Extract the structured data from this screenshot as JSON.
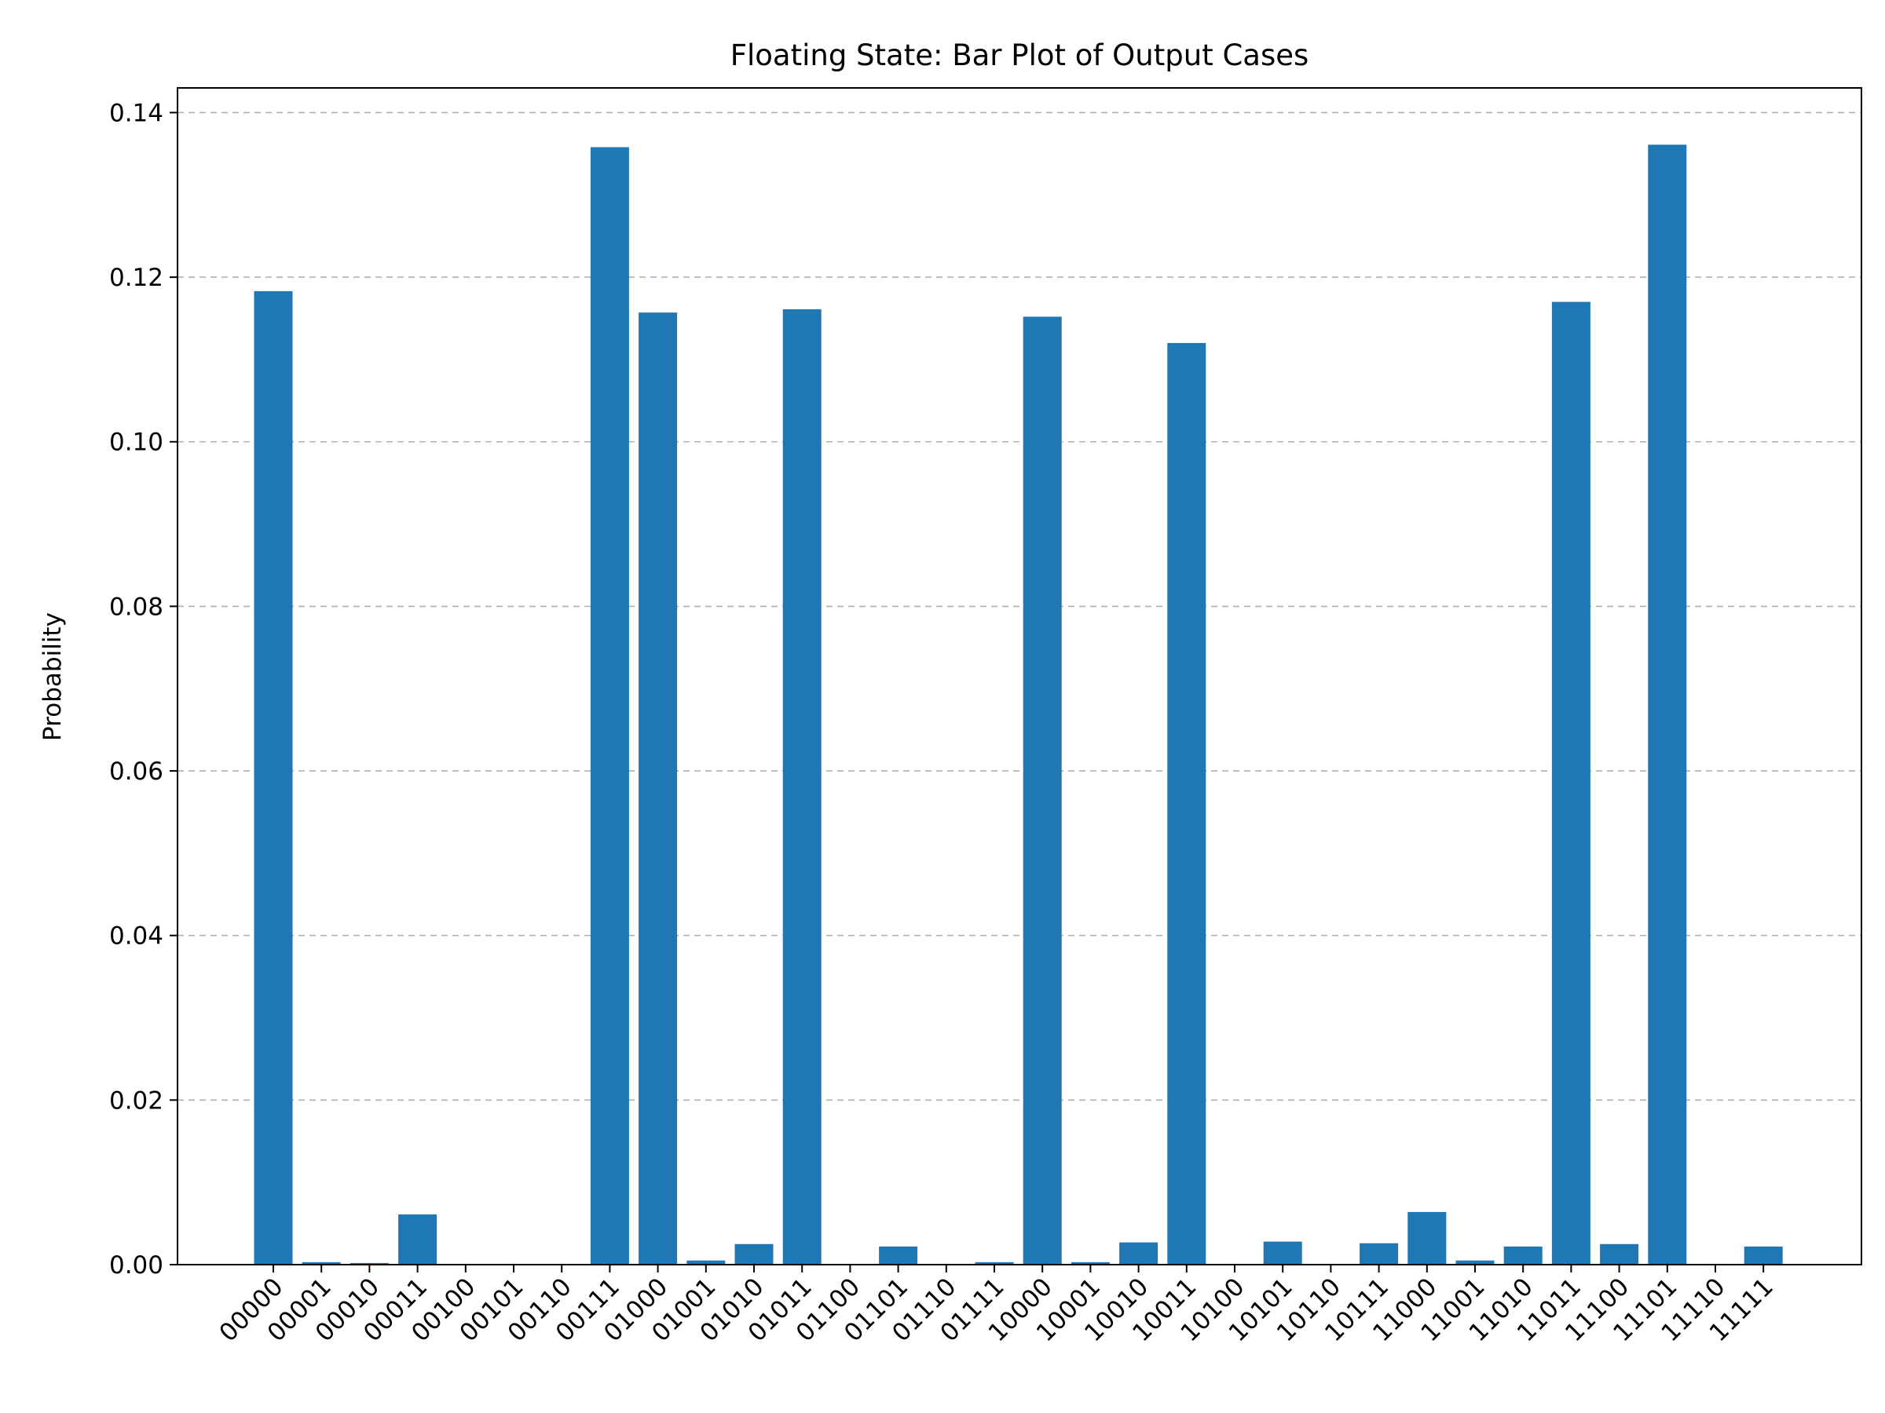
{
  "chart_data": {
    "type": "bar",
    "title": "Floating State: Bar Plot of Output Cases",
    "xlabel": "",
    "ylabel": "Probability",
    "ylim": [
      0,
      0.143
    ],
    "yticks": [
      0.0,
      0.02,
      0.04,
      0.06,
      0.08,
      0.1,
      0.12,
      0.14
    ],
    "ytick_labels": [
      "0.00",
      "0.02",
      "0.04",
      "0.06",
      "0.08",
      "0.10",
      "0.12",
      "0.14"
    ],
    "grid": "y-dashed",
    "color": "#1f77b4",
    "categories": [
      "00000",
      "00001",
      "00010",
      "00011",
      "00100",
      "00101",
      "00110",
      "00111",
      "01000",
      "01001",
      "01010",
      "01011",
      "01100",
      "01101",
      "01110",
      "01111",
      "10000",
      "10001",
      "10010",
      "10011",
      "10100",
      "10101",
      "10110",
      "10111",
      "11000",
      "11001",
      "11010",
      "11011",
      "11100",
      "11101",
      "11110",
      "11111"
    ],
    "values": [
      0.1183,
      0.0003,
      0.0002,
      0.0061,
      0.0,
      0.0,
      0.0,
      0.1358,
      0.1157,
      0.0005,
      0.0025,
      0.1161,
      0.0,
      0.0022,
      0.0,
      0.0003,
      0.1152,
      0.0003,
      0.0027,
      0.112,
      0.0,
      0.0028,
      0.0,
      0.0026,
      0.0064,
      0.0005,
      0.0022,
      0.117,
      0.0025,
      0.1361,
      0.0,
      0.0022
    ]
  }
}
